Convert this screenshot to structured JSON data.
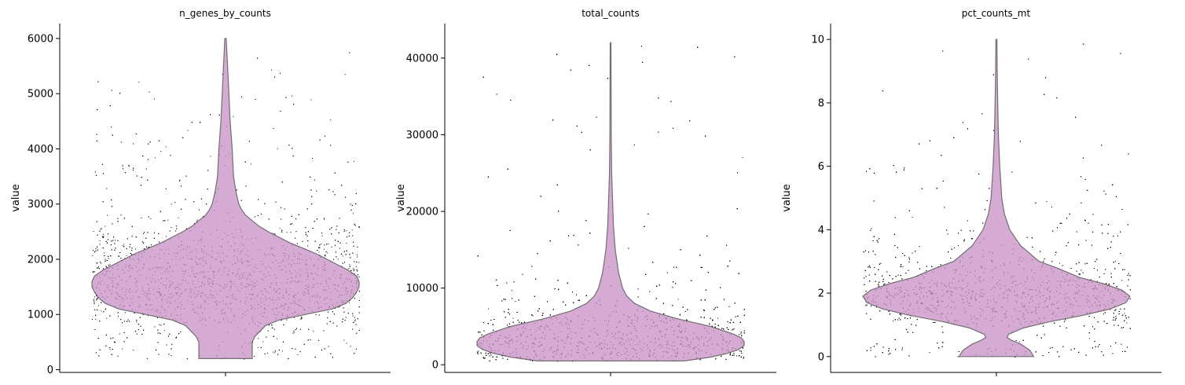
{
  "figure": {
    "type": "violin",
    "ylabel": "value"
  },
  "chart_data": [
    {
      "type": "violin",
      "title": "n_genes_by_counts",
      "ylabel": "value",
      "ylim": [
        -50,
        6270
      ],
      "yticks": [
        0,
        1000,
        2000,
        3000,
        4000,
        5000,
        6000
      ],
      "ytick_labels": [
        "0",
        "1000",
        "2000",
        "3000",
        "4000",
        "5000",
        "6000"
      ],
      "data_range": [
        200,
        6000
      ],
      "density_profile": [
        [
          200,
          0.2
        ],
        [
          300,
          0.2
        ],
        [
          400,
          0.2
        ],
        [
          500,
          0.2
        ],
        [
          600,
          0.22
        ],
        [
          700,
          0.26
        ],
        [
          800,
          0.3
        ],
        [
          900,
          0.4
        ],
        [
          1000,
          0.6
        ],
        [
          1100,
          0.8
        ],
        [
          1200,
          0.9
        ],
        [
          1300,
          0.95
        ],
        [
          1400,
          0.98
        ],
        [
          1500,
          1.0
        ],
        [
          1600,
          1.0
        ],
        [
          1700,
          0.98
        ],
        [
          1800,
          0.92
        ],
        [
          1900,
          0.84
        ],
        [
          2000,
          0.76
        ],
        [
          2100,
          0.68
        ],
        [
          2200,
          0.58
        ],
        [
          2300,
          0.48
        ],
        [
          2400,
          0.4
        ],
        [
          2500,
          0.32
        ],
        [
          2600,
          0.25
        ],
        [
          2700,
          0.2
        ],
        [
          2800,
          0.15
        ],
        [
          2900,
          0.12
        ],
        [
          3000,
          0.1
        ],
        [
          3200,
          0.08
        ],
        [
          3500,
          0.06
        ],
        [
          4000,
          0.05
        ],
        [
          4500,
          0.035
        ],
        [
          5000,
          0.025
        ],
        [
          5500,
          0.015
        ],
        [
          6000,
          0.005
        ]
      ],
      "points": {
        "count": 4200,
        "jitter": "full-width"
      }
    },
    {
      "type": "violin",
      "title": "total_counts",
      "ylabel": "value",
      "ylim": [
        -1000,
        44500
      ],
      "yticks": [
        0,
        10000,
        20000,
        30000,
        40000
      ],
      "ytick_labels": [
        "0",
        "10000",
        "20000",
        "30000",
        "40000"
      ],
      "data_range": [
        500,
        42000
      ],
      "density_profile": [
        [
          500,
          0.55
        ],
        [
          1000,
          0.75
        ],
        [
          1500,
          0.88
        ],
        [
          2000,
          0.96
        ],
        [
          2500,
          1.0
        ],
        [
          3000,
          1.0
        ],
        [
          3500,
          0.98
        ],
        [
          4000,
          0.92
        ],
        [
          5000,
          0.75
        ],
        [
          6000,
          0.5
        ],
        [
          7000,
          0.3
        ],
        [
          8000,
          0.18
        ],
        [
          9000,
          0.12
        ],
        [
          10000,
          0.09
        ],
        [
          12000,
          0.06
        ],
        [
          15000,
          0.035
        ],
        [
          18000,
          0.022
        ],
        [
          21000,
          0.016
        ],
        [
          25000,
          0.008
        ],
        [
          30000,
          0.005
        ],
        [
          36000,
          0.004
        ],
        [
          42000,
          0.003
        ]
      ],
      "points": {
        "count": 4200,
        "jitter": "full-width"
      }
    },
    {
      "type": "violin",
      "title": "pct_counts_mt",
      "ylabel": "value",
      "ylim": [
        -0.5,
        10.5
      ],
      "yticks": [
        0,
        2,
        4,
        6,
        8,
        10
      ],
      "ytick_labels": [
        "0",
        "2",
        "4",
        "6",
        "8",
        "10"
      ],
      "data_range": [
        0,
        10
      ],
      "density_profile": [
        [
          0.0,
          0.28
        ],
        [
          0.2,
          0.25
        ],
        [
          0.4,
          0.18
        ],
        [
          0.5,
          0.12
        ],
        [
          0.6,
          0.08
        ],
        [
          0.7,
          0.09
        ],
        [
          0.9,
          0.2
        ],
        [
          1.1,
          0.4
        ],
        [
          1.3,
          0.65
        ],
        [
          1.5,
          0.85
        ],
        [
          1.7,
          0.97
        ],
        [
          1.9,
          1.0
        ],
        [
          2.1,
          0.94
        ],
        [
          2.3,
          0.8
        ],
        [
          2.5,
          0.62
        ],
        [
          2.8,
          0.45
        ],
        [
          3.0,
          0.32
        ],
        [
          3.5,
          0.18
        ],
        [
          4.0,
          0.1
        ],
        [
          4.5,
          0.06
        ],
        [
          5.0,
          0.04
        ],
        [
          6.0,
          0.025
        ],
        [
          7.0,
          0.015
        ],
        [
          8.0,
          0.01
        ],
        [
          9.0,
          0.006
        ],
        [
          10.0,
          0.004
        ]
      ],
      "points": {
        "count": 4200,
        "jitter": "full-width"
      }
    }
  ],
  "colors": {
    "violin_fill": "#c994c7",
    "violin_edge": "#555555",
    "points": "#000000",
    "axis": "#000000"
  }
}
